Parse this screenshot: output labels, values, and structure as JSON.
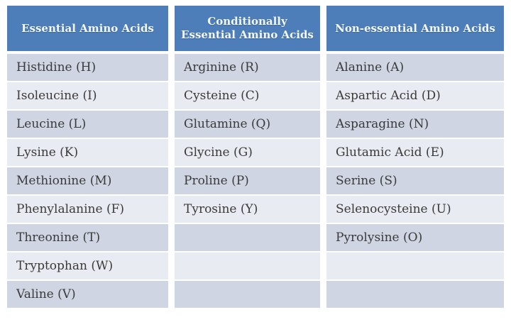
{
  "theme": {
    "page_background": "#ffffff",
    "header_background": "#4d7eba",
    "header_text_color": "#f4f8fb",
    "band_dark": "#cfd5e2",
    "band_light": "#e9ebf2",
    "body_text_color": "#3a3a3a",
    "gutter_color": "#ffffff"
  },
  "chart_data": {
    "type": "table",
    "title": "",
    "legend_position": "none",
    "columns": [
      "Essential Amino Acids",
      "Conditionally Essential Amino Acids",
      "Non-essential Amino Acids"
    ],
    "rows": [
      [
        "Histidine (H)",
        "Arginine (R)",
        "Alanine (A)"
      ],
      [
        "Isoleucine (I)",
        "Cysteine (C)",
        "Aspartic Acid (D)"
      ],
      [
        "Leucine (L)",
        "Glutamine (Q)",
        "Asparagine (N)"
      ],
      [
        "Lysine (K)",
        "Glycine (G)",
        "Glutamic Acid (E)"
      ],
      [
        "Methionine (M)",
        "Proline (P)",
        "Serine (S)"
      ],
      [
        "Phenylalanine (F)",
        "Tyrosine (Y)",
        "Selenocysteine (U)"
      ],
      [
        "Threonine (T)",
        "",
        "Pyrolysine (O)"
      ],
      [
        "Tryptophan (W)",
        "",
        ""
      ],
      [
        "Valine (V)",
        "",
        ""
      ]
    ]
  }
}
